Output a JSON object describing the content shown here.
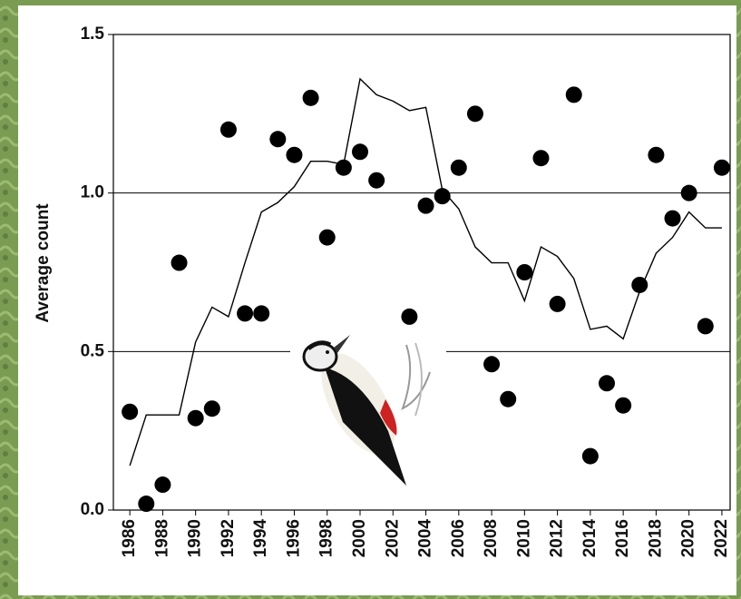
{
  "chart_data": {
    "type": "scatter",
    "y_label": "Average count",
    "x": [
      1986,
      1987,
      1988,
      1989,
      1990,
      1991,
      1992,
      1993,
      1994,
      1995,
      1996,
      1997,
      1998,
      1999,
      2000,
      2001,
      2002,
      2003,
      2004,
      2005,
      2006,
      2007,
      2008,
      2009,
      2010,
      2011,
      2012,
      2013,
      2014,
      2015,
      2016,
      2017,
      2018,
      2019,
      2020,
      2021,
      2022
    ],
    "series": [
      {
        "style": "markers",
        "color": "#000000",
        "values": [
          0.31,
          0.02,
          0.08,
          0.78,
          0.29,
          0.32,
          1.2,
          0.62,
          0.62,
          1.17,
          1.12,
          1.3,
          0.86,
          1.08,
          1.13,
          1.04,
          null,
          0.61,
          0.96,
          0.99,
          1.08,
          1.25,
          0.46,
          0.35,
          0.75,
          1.11,
          0.65,
          1.31,
          0.17,
          0.4,
          0.33,
          0.71,
          1.12,
          0.92,
          1.0,
          0.58,
          1.08
        ]
      },
      {
        "style": "line",
        "color": "#000000",
        "values": [
          0.14,
          0.3,
          0.3,
          0.3,
          0.53,
          0.64,
          0.61,
          0.78,
          0.94,
          0.97,
          1.02,
          1.1,
          1.1,
          1.09,
          1.36,
          1.31,
          1.29,
          1.26,
          1.27,
          1.01,
          0.95,
          0.83,
          0.78,
          0.78,
          0.66,
          0.83,
          0.8,
          0.73,
          0.57,
          0.58,
          0.54,
          0.69,
          0.81,
          0.86,
          0.94,
          0.89,
          0.89
        ]
      }
    ],
    "xlim": [
      1985,
      2022.5
    ],
    "xticks": [
      1986,
      1988,
      1990,
      1992,
      1994,
      1996,
      1998,
      2000,
      2002,
      2004,
      2006,
      2008,
      2010,
      2012,
      2014,
      2016,
      2018,
      2020,
      2022
    ],
    "ylim": [
      0,
      1.5
    ],
    "yticks": [
      {
        "value": 0,
        "label": "0.0"
      },
      0.5,
      {
        "value": 1,
        "label": "1.0"
      },
      1.5
    ],
    "grid": true
  }
}
